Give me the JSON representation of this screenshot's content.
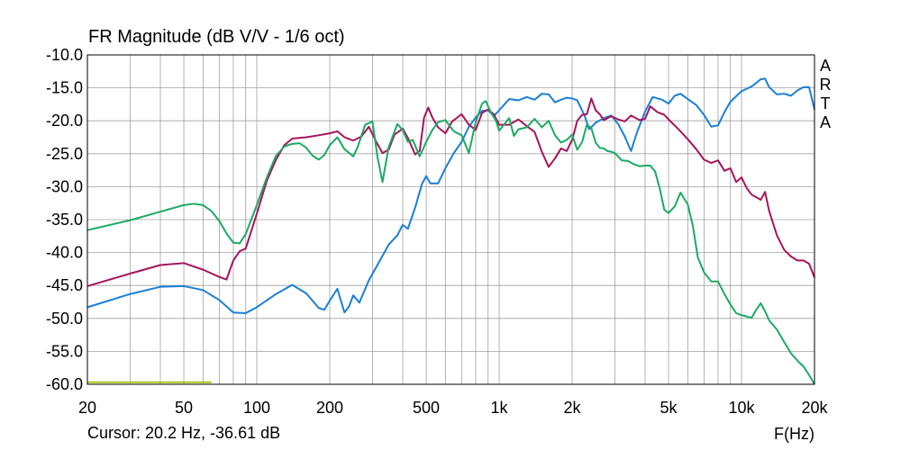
{
  "chart_data": {
    "type": "line",
    "title": "FR Magnitude (dB V/V - 1/6 oct)",
    "xlabel": "F(Hz)",
    "ylabel": "",
    "x_scale": "log",
    "xlim": [
      20,
      20000
    ],
    "ylim": [
      -60,
      -10
    ],
    "grid": true,
    "x_tick_labels": [
      {
        "value": 20,
        "label": "20"
      },
      {
        "value": 50,
        "label": "50"
      },
      {
        "value": 100,
        "label": "100"
      },
      {
        "value": 200,
        "label": "200"
      },
      {
        "value": 500,
        "label": "500"
      },
      {
        "value": 1000,
        "label": "1k"
      },
      {
        "value": 2000,
        "label": "2k"
      },
      {
        "value": 5000,
        "label": "5k"
      },
      {
        "value": 10000,
        "label": "10k"
      },
      {
        "value": 20000,
        "label": "20k"
      }
    ],
    "y_tick_labels": [
      {
        "value": -10,
        "label": "-10.0"
      },
      {
        "value": -15,
        "label": "-15.0"
      },
      {
        "value": -20,
        "label": "-20.0"
      },
      {
        "value": -25,
        "label": "-25.0"
      },
      {
        "value": -30,
        "label": "-30.0"
      },
      {
        "value": -35,
        "label": "-35.0"
      },
      {
        "value": -40,
        "label": "-40.0"
      },
      {
        "value": -45,
        "label": "-45.0"
      },
      {
        "value": -50,
        "label": "-50.0"
      },
      {
        "value": -55,
        "label": "-55.0"
      },
      {
        "value": -60,
        "label": "-60.0"
      }
    ],
    "brand_letters": [
      "A",
      "R",
      "T",
      "A"
    ],
    "series": [
      {
        "color": "#1a7fd6",
        "points": [
          [
            20,
            -48.3
          ],
          [
            30,
            -46.3
          ],
          [
            40,
            -45.2
          ],
          [
            50,
            -45.1
          ],
          [
            60,
            -45.7
          ],
          [
            70,
            -47.2
          ],
          [
            80,
            -49.1
          ],
          [
            90,
            -49.2
          ],
          [
            100,
            -48.3
          ],
          [
            120,
            -46.3
          ],
          [
            140,
            -44.9
          ],
          [
            160,
            -46.2
          ],
          [
            180,
            -48.4
          ],
          [
            190,
            -48.7
          ],
          [
            200,
            -47.3
          ],
          [
            215,
            -45.5
          ],
          [
            230,
            -49.1
          ],
          [
            240,
            -48.2
          ],
          [
            250,
            -46.5
          ],
          [
            265,
            -47.6
          ],
          [
            290,
            -44.2
          ],
          [
            320,
            -41.4
          ],
          [
            350,
            -38.8
          ],
          [
            380,
            -37.4
          ],
          [
            400,
            -35.8
          ],
          [
            420,
            -36.4
          ],
          [
            450,
            -33.2
          ],
          [
            480,
            -29.6
          ],
          [
            500,
            -28.4
          ],
          [
            520,
            -29.5
          ],
          [
            560,
            -29.5
          ],
          [
            600,
            -27.2
          ],
          [
            650,
            -24.9
          ],
          [
            700,
            -23.2
          ],
          [
            750,
            -20.9
          ],
          [
            800,
            -19.5
          ],
          [
            850,
            -18.5
          ],
          [
            900,
            -18.4
          ],
          [
            950,
            -19.3
          ],
          [
            1000,
            -18.4
          ],
          [
            1100,
            -16.7
          ],
          [
            1200,
            -16.9
          ],
          [
            1300,
            -16.4
          ],
          [
            1400,
            -16.8
          ],
          [
            1500,
            -15.9
          ],
          [
            1600,
            -16.0
          ],
          [
            1700,
            -17.2
          ],
          [
            1800,
            -16.8
          ],
          [
            1900,
            -16.5
          ],
          [
            2000,
            -16.6
          ],
          [
            2100,
            -16.9
          ],
          [
            2250,
            -19.2
          ],
          [
            2350,
            -21.3
          ],
          [
            2500,
            -20.3
          ],
          [
            2700,
            -19.6
          ],
          [
            2900,
            -19.2
          ],
          [
            3100,
            -20.5
          ],
          [
            3300,
            -22.4
          ],
          [
            3500,
            -24.6
          ],
          [
            3700,
            -21.8
          ],
          [
            4000,
            -18.6
          ],
          [
            4300,
            -16.4
          ],
          [
            4700,
            -16.8
          ],
          [
            5000,
            -17.4
          ],
          [
            5300,
            -16.2
          ],
          [
            5600,
            -15.9
          ],
          [
            6000,
            -16.7
          ],
          [
            6500,
            -17.6
          ],
          [
            7000,
            -19.1
          ],
          [
            7500,
            -20.9
          ],
          [
            8000,
            -20.7
          ],
          [
            8500,
            -18.7
          ],
          [
            9000,
            -17.1
          ],
          [
            10000,
            -15.5
          ],
          [
            11000,
            -14.8
          ],
          [
            12000,
            -13.7
          ],
          [
            12500,
            -13.6
          ],
          [
            13000,
            -14.9
          ],
          [
            14000,
            -16.0
          ],
          [
            15000,
            -15.9
          ],
          [
            16000,
            -16.2
          ],
          [
            17000,
            -15.4
          ],
          [
            18000,
            -14.9
          ],
          [
            19000,
            -14.9
          ],
          [
            20000,
            -18.3
          ]
        ]
      },
      {
        "color": "#a5155c",
        "points": [
          [
            20,
            -45.1
          ],
          [
            30,
            -43.2
          ],
          [
            40,
            -41.9
          ],
          [
            50,
            -41.6
          ],
          [
            60,
            -42.6
          ],
          [
            70,
            -43.7
          ],
          [
            75,
            -44.1
          ],
          [
            80,
            -41.2
          ],
          [
            85,
            -39.8
          ],
          [
            90,
            -39.4
          ],
          [
            100,
            -34.1
          ],
          [
            110,
            -29.1
          ],
          [
            120,
            -25.9
          ],
          [
            130,
            -23.7
          ],
          [
            140,
            -22.7
          ],
          [
            160,
            -22.5
          ],
          [
            180,
            -22.2
          ],
          [
            200,
            -21.9
          ],
          [
            215,
            -21.6
          ],
          [
            230,
            -22.5
          ],
          [
            250,
            -23.0
          ],
          [
            270,
            -22.4
          ],
          [
            290,
            -20.9
          ],
          [
            310,
            -23.1
          ],
          [
            330,
            -24.9
          ],
          [
            350,
            -24.4
          ],
          [
            370,
            -22.1
          ],
          [
            400,
            -21.2
          ],
          [
            420,
            -22.6
          ],
          [
            450,
            -25.1
          ],
          [
            470,
            -24.6
          ],
          [
            490,
            -19.5
          ],
          [
            510,
            -18.0
          ],
          [
            530,
            -19.5
          ],
          [
            560,
            -21.0
          ],
          [
            600,
            -21.9
          ],
          [
            640,
            -20.1
          ],
          [
            700,
            -19.0
          ],
          [
            750,
            -20.6
          ],
          [
            800,
            -21.4
          ],
          [
            850,
            -18.8
          ],
          [
            900,
            -18.3
          ],
          [
            950,
            -19.0
          ],
          [
            1000,
            -20.6
          ],
          [
            1100,
            -20.6
          ],
          [
            1200,
            -19.8
          ],
          [
            1300,
            -20.8
          ],
          [
            1400,
            -21.7
          ],
          [
            1500,
            -24.7
          ],
          [
            1600,
            -27.0
          ],
          [
            1700,
            -25.7
          ],
          [
            1800,
            -24.2
          ],
          [
            1900,
            -24.6
          ],
          [
            2000,
            -22.9
          ],
          [
            2100,
            -20.0
          ],
          [
            2200,
            -19.1
          ],
          [
            2300,
            -19.0
          ],
          [
            2400,
            -16.6
          ],
          [
            2500,
            -18.4
          ],
          [
            2600,
            -19.0
          ],
          [
            2700,
            -19.9
          ],
          [
            2900,
            -19.3
          ],
          [
            3100,
            -19.8
          ],
          [
            3300,
            -20.1
          ],
          [
            3500,
            -19.2
          ],
          [
            3800,
            -19.9
          ],
          [
            4000,
            -19.7
          ],
          [
            4200,
            -17.8
          ],
          [
            4500,
            -18.7
          ],
          [
            4800,
            -19.1
          ],
          [
            5000,
            -19.8
          ],
          [
            5500,
            -21.3
          ],
          [
            6000,
            -22.8
          ],
          [
            6500,
            -24.3
          ],
          [
            7000,
            -25.9
          ],
          [
            7500,
            -26.4
          ],
          [
            8000,
            -26.0
          ],
          [
            8500,
            -27.6
          ],
          [
            9000,
            -27.2
          ],
          [
            9500,
            -29.3
          ],
          [
            10000,
            -28.6
          ],
          [
            10500,
            -30.2
          ],
          [
            11000,
            -31.2
          ],
          [
            12000,
            -32.0
          ],
          [
            12500,
            -30.8
          ],
          [
            13000,
            -33.7
          ],
          [
            14000,
            -37.4
          ],
          [
            15000,
            -39.6
          ],
          [
            16000,
            -40.6
          ],
          [
            17000,
            -41.2
          ],
          [
            18000,
            -41.2
          ],
          [
            19000,
            -41.7
          ],
          [
            20000,
            -43.8
          ]
        ]
      },
      {
        "color": "#1caa62",
        "points": [
          [
            20,
            -36.6
          ],
          [
            30,
            -35.1
          ],
          [
            40,
            -33.8
          ],
          [
            50,
            -32.8
          ],
          [
            55,
            -32.6
          ],
          [
            60,
            -32.8
          ],
          [
            65,
            -33.7
          ],
          [
            70,
            -35.2
          ],
          [
            75,
            -37.1
          ],
          [
            80,
            -38.5
          ],
          [
            85,
            -38.6
          ],
          [
            90,
            -37.2
          ],
          [
            100,
            -32.8
          ],
          [
            110,
            -28.6
          ],
          [
            120,
            -25.3
          ],
          [
            130,
            -23.9
          ],
          [
            140,
            -23.5
          ],
          [
            150,
            -23.4
          ],
          [
            160,
            -24.1
          ],
          [
            170,
            -25.3
          ],
          [
            180,
            -25.9
          ],
          [
            190,
            -25.2
          ],
          [
            200,
            -23.7
          ],
          [
            215,
            -22.5
          ],
          [
            230,
            -24.3
          ],
          [
            250,
            -25.4
          ],
          [
            260,
            -24.1
          ],
          [
            280,
            -20.6
          ],
          [
            300,
            -20.1
          ],
          [
            315,
            -25.6
          ],
          [
            330,
            -29.3
          ],
          [
            350,
            -24.0
          ],
          [
            380,
            -20.5
          ],
          [
            400,
            -21.4
          ],
          [
            420,
            -23.2
          ],
          [
            440,
            -22.9
          ],
          [
            470,
            -25.4
          ],
          [
            500,
            -23.2
          ],
          [
            530,
            -21.4
          ],
          [
            560,
            -20.2
          ],
          [
            600,
            -19.9
          ],
          [
            650,
            -21.6
          ],
          [
            700,
            -22.2
          ],
          [
            750,
            -24.9
          ],
          [
            800,
            -20.2
          ],
          [
            850,
            -17.4
          ],
          [
            880,
            -17.0
          ],
          [
            920,
            -18.6
          ],
          [
            970,
            -20.0
          ],
          [
            1000,
            -21.5
          ],
          [
            1100,
            -19.6
          ],
          [
            1150,
            -22.3
          ],
          [
            1200,
            -21.3
          ],
          [
            1300,
            -21.0
          ],
          [
            1400,
            -19.7
          ],
          [
            1500,
            -21.0
          ],
          [
            1600,
            -20.0
          ],
          [
            1700,
            -22.2
          ],
          [
            1800,
            -23.3
          ],
          [
            1900,
            -22.9
          ],
          [
            2000,
            -22.1
          ],
          [
            2100,
            -24.4
          ],
          [
            2200,
            -23.2
          ],
          [
            2300,
            -20.6
          ],
          [
            2400,
            -21.1
          ],
          [
            2500,
            -23.3
          ],
          [
            2600,
            -24.1
          ],
          [
            2700,
            -24.2
          ],
          [
            2800,
            -24.6
          ],
          [
            2900,
            -24.7
          ],
          [
            3000,
            -24.9
          ],
          [
            3200,
            -26.0
          ],
          [
            3400,
            -26.1
          ],
          [
            3600,
            -26.6
          ],
          [
            3800,
            -26.9
          ],
          [
            4000,
            -26.8
          ],
          [
            4200,
            -26.8
          ],
          [
            4400,
            -27.7
          ],
          [
            4600,
            -30.3
          ],
          [
            4800,
            -33.5
          ],
          [
            5000,
            -34.0
          ],
          [
            5300,
            -33.0
          ],
          [
            5600,
            -30.9
          ],
          [
            6000,
            -32.7
          ],
          [
            6300,
            -36.0
          ],
          [
            6600,
            -40.7
          ],
          [
            7000,
            -43.0
          ],
          [
            7500,
            -44.4
          ],
          [
            8000,
            -44.4
          ],
          [
            8500,
            -46.3
          ],
          [
            9000,
            -47.9
          ],
          [
            9500,
            -49.2
          ],
          [
            10000,
            -49.5
          ],
          [
            11000,
            -49.9
          ],
          [
            11500,
            -48.7
          ],
          [
            12000,
            -47.7
          ],
          [
            12500,
            -48.9
          ],
          [
            13000,
            -50.3
          ],
          [
            14000,
            -51.7
          ],
          [
            15000,
            -53.6
          ],
          [
            16000,
            -55.3
          ],
          [
            17000,
            -56.4
          ],
          [
            18000,
            -57.3
          ],
          [
            19000,
            -58.6
          ],
          [
            20000,
            -60.0
          ]
        ]
      },
      {
        "color": "#a8c71a",
        "points": [
          [
            20,
            -59.7
          ],
          [
            65,
            -59.7
          ]
        ]
      }
    ]
  },
  "footer": {
    "cursor_text": "Cursor: 20.2 Hz, -36.61 dB"
  }
}
